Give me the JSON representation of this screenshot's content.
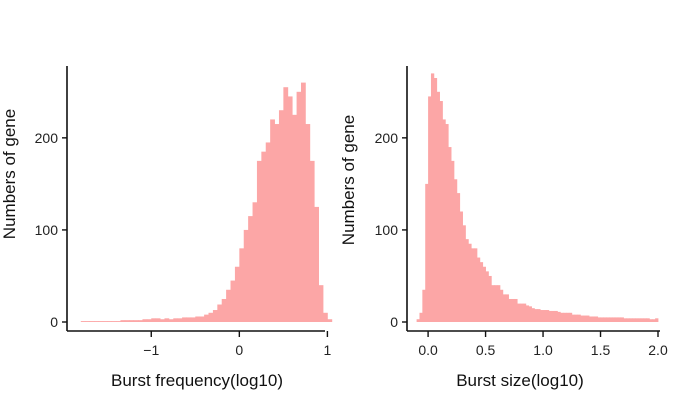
{
  "colors": {
    "bar": "#fca6a6",
    "axis": "#111111",
    "text": "#222222"
  },
  "chart_data": [
    {
      "type": "bar",
      "title": "",
      "xlabel": "Burst frequency(log10)",
      "ylabel": "Numbers of gene",
      "xlim": [
        -1.9,
        0.95
      ],
      "ylim": [
        0,
        265
      ],
      "x_ticks": [
        -1,
        0,
        1
      ],
      "x_tick_labels": [
        "−1",
        "0",
        "1"
      ],
      "y_ticks": [
        0,
        100,
        200
      ],
      "y_tick_labels": [
        "0",
        "100",
        "200"
      ],
      "grid": false,
      "legend": "none",
      "bin_width": 0.05,
      "bin_start": -1.8,
      "values": [
        1,
        1,
        1,
        1,
        1,
        1,
        1,
        1,
        1,
        2,
        2,
        2,
        2,
        2,
        3,
        3,
        4,
        4,
        3,
        4,
        3,
        4,
        4,
        5,
        5,
        5,
        6,
        6,
        8,
        10,
        13,
        19,
        25,
        35,
        45,
        60,
        80,
        100,
        115,
        130,
        175,
        185,
        195,
        220,
        215,
        230,
        255,
        245,
        225,
        250,
        260,
        215,
        175,
        125,
        40,
        10,
        3
      ]
    },
    {
      "type": "bar",
      "title": "",
      "xlabel": "Burst size(log10)",
      "ylabel": "Numbers of gene",
      "xlim": [
        -0.14,
        2.0
      ],
      "ylim": [
        0,
        265
      ],
      "x_ticks": [
        0.0,
        0.5,
        1.0,
        1.5,
        2.0
      ],
      "x_tick_labels": [
        "0.0",
        "0.5",
        "1.0",
        "1.5",
        "2.0"
      ],
      "y_ticks": [
        0,
        100,
        200
      ],
      "y_tick_labels": [
        "0",
        "100",
        "200"
      ],
      "grid": false,
      "legend": "none",
      "bin_width": 0.025,
      "bin_start": -0.1,
      "values": [
        3,
        10,
        35,
        150,
        245,
        270,
        265,
        250,
        240,
        220,
        215,
        190,
        175,
        155,
        140,
        120,
        105,
        90,
        85,
        80,
        80,
        70,
        65,
        60,
        55,
        50,
        40,
        40,
        40,
        35,
        30,
        30,
        25,
        25,
        25,
        20,
        20,
        20,
        18,
        17,
        15,
        14,
        14,
        13,
        13,
        13,
        12,
        12,
        12,
        11,
        10,
        10,
        10,
        10,
        8,
        8,
        8,
        7,
        7,
        7,
        6,
        6,
        6,
        5,
        5,
        5,
        5,
        5,
        5,
        5,
        5,
        5,
        4,
        4,
        4,
        4,
        4,
        4,
        4,
        4,
        4,
        3,
        3,
        4
      ]
    }
  ]
}
